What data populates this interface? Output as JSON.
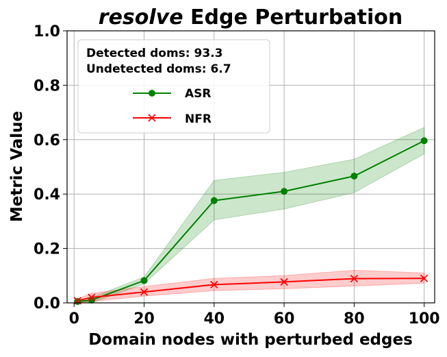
{
  "chart_data": {
    "type": "line",
    "title_italic": "resolve",
    "title_rest": "Edge Perturbation",
    "xlabel": "Domain nodes with perturbed edges",
    "ylabel": "Metric Value",
    "xlim": [
      -2,
      103
    ],
    "ylim": [
      0,
      1.0
    ],
    "xticks": [
      0,
      20,
      40,
      60,
      80,
      100
    ],
    "yticks": [
      0.0,
      0.2,
      0.4,
      0.6,
      0.8,
      1.0
    ],
    "grid": true,
    "legend_position": "top-left",
    "annotation_lines": [
      "Detected doms: 93.3",
      "Undetected doms: 6.7"
    ],
    "x": [
      1,
      5,
      20,
      40,
      60,
      80,
      100
    ],
    "series": [
      {
        "name": "ASR",
        "color": "#008000",
        "marker": "circle",
        "values": [
          0.005,
          0.01,
          0.082,
          0.376,
          0.41,
          0.466,
          0.596
        ],
        "lower": [
          0.0,
          0.0,
          0.07,
          0.305,
          0.345,
          0.405,
          0.548
        ],
        "upper": [
          0.01,
          0.02,
          0.095,
          0.45,
          0.48,
          0.528,
          0.645
        ]
      },
      {
        "name": "NFR",
        "color": "#ff0000",
        "marker": "x",
        "values": [
          0.008,
          0.02,
          0.04,
          0.067,
          0.077,
          0.089,
          0.09
        ],
        "lower": [
          0.0,
          0.005,
          0.025,
          0.045,
          0.052,
          0.062,
          0.072
        ],
        "upper": [
          0.015,
          0.035,
          0.06,
          0.09,
          0.1,
          0.12,
          0.11
        ]
      }
    ]
  }
}
